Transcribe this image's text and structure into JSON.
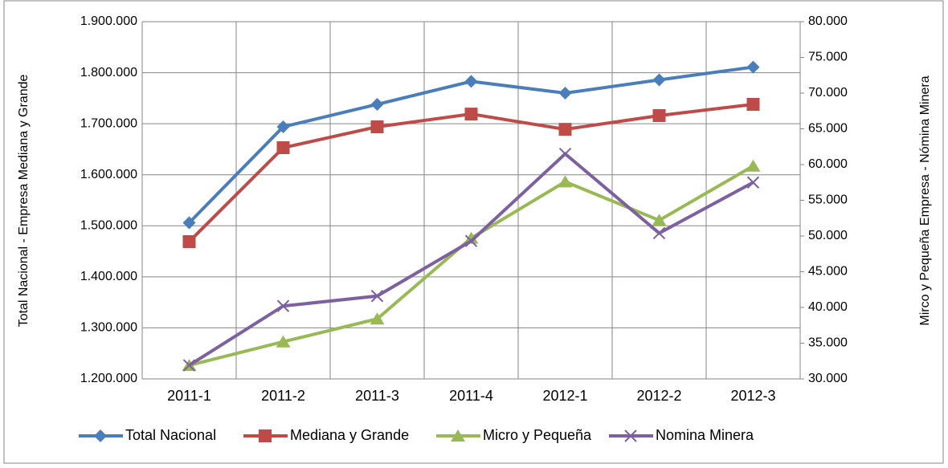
{
  "chart_data": {
    "type": "line",
    "y_label": "Total Nacional - Empresa Mediana y Grande",
    "y2_label": "Mirco y Pequeña Empresa - Nómina Minera",
    "categories": [
      "2011-1",
      "2011-2",
      "2011-3",
      "2011-4",
      "2012-1",
      "2012-2",
      "2012-3"
    ],
    "ylim": [
      1200000,
      1900000
    ],
    "yticks": [
      {
        "value": 1200000,
        "label": "1.200.000"
      },
      {
        "value": 1300000,
        "label": "1.300.000"
      },
      {
        "value": 1400000,
        "label": "1.400.000"
      },
      {
        "value": 1500000,
        "label": "1.500.000"
      },
      {
        "value": 1600000,
        "label": "1.600.000"
      },
      {
        "value": 1700000,
        "label": "1.700.000"
      },
      {
        "value": 1800000,
        "label": "1.800.000"
      },
      {
        "value": 1900000,
        "label": "1.900.000"
      }
    ],
    "y2lim": [
      30000,
      80000
    ],
    "y2ticks": [
      {
        "value": 30000,
        "label": "30.000"
      },
      {
        "value": 35000,
        "label": "35.000"
      },
      {
        "value": 40000,
        "label": "40.000"
      },
      {
        "value": 45000,
        "label": "45.000"
      },
      {
        "value": 50000,
        "label": "50.000"
      },
      {
        "value": 55000,
        "label": "55.000"
      },
      {
        "value": 60000,
        "label": "60.000"
      },
      {
        "value": 65000,
        "label": "65.000"
      },
      {
        "value": 70000,
        "label": "70.000"
      },
      {
        "value": 75000,
        "label": "75.000"
      },
      {
        "value": 80000,
        "label": "80.000"
      }
    ],
    "grid": true,
    "legend": "bottom",
    "series": [
      {
        "name": "Total Nacional",
        "color": "#4a7ebb",
        "marker": "diamond",
        "values": [
          1506000,
          1694000,
          1738000,
          1783000,
          1760000,
          1786000,
          1811000
        ]
      },
      {
        "name": "Mediana y Grande",
        "color": "#be4b48",
        "marker": "square",
        "values": [
          1469000,
          1653000,
          1694000,
          1719000,
          1689000,
          1716000,
          1738000
        ]
      },
      {
        "name": "Micro y Pequeña",
        "color": "#98b954",
        "marker": "triangle",
        "axis": "y2",
        "values": [
          31900,
          35200,
          38400,
          49700,
          57600,
          52200,
          59800
        ]
      },
      {
        "name": "Nomina Minera",
        "color": "#7d60a0",
        "marker": "x",
        "axis": "y2",
        "values": [
          31900,
          40200,
          41600,
          49300,
          61500,
          50400,
          57500
        ]
      }
    ]
  }
}
